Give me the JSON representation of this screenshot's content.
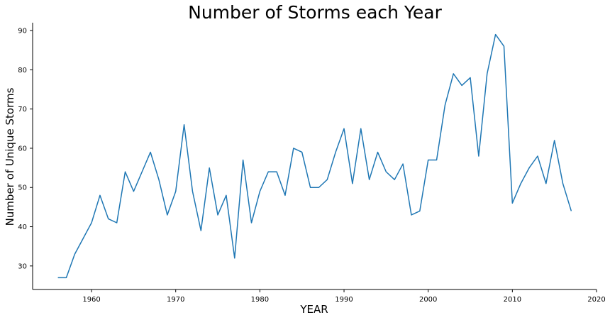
{
  "chart_data": {
    "type": "line",
    "title": "Number of Storms each Year",
    "xlabel": "YEAR",
    "ylabel": "Number of Unique Storms",
    "xlim": [
      1953,
      2020
    ],
    "ylim": [
      24,
      92
    ],
    "xticks": [
      1960,
      1970,
      1980,
      1990,
      2000,
      2010,
      2020
    ],
    "yticks": [
      30,
      40,
      50,
      60,
      70,
      80,
      90
    ],
    "grid": false,
    "legend": "none",
    "color": "#1f77b4",
    "x": [
      1956,
      1957,
      1958,
      1959,
      1960,
      1961,
      1962,
      1963,
      1964,
      1965,
      1966,
      1967,
      1968,
      1969,
      1970,
      1971,
      1972,
      1973,
      1974,
      1975,
      1976,
      1977,
      1978,
      1979,
      1980,
      1981,
      1982,
      1983,
      1984,
      1985,
      1986,
      1987,
      1988,
      1989,
      1990,
      1991,
      1992,
      1993,
      1994,
      1995,
      1996,
      1997,
      1998,
      1999,
      2000,
      2001,
      2002,
      2003,
      2004,
      2005,
      2006,
      2007,
      2008,
      2009,
      2010,
      2011,
      2012,
      2013,
      2014,
      2015,
      2016,
      2017
    ],
    "y": [
      27,
      27,
      33,
      37,
      41,
      48,
      42,
      41,
      54,
      49,
      54,
      59,
      52,
      43,
      49,
      66,
      49,
      39,
      55,
      43,
      48,
      32,
      57,
      41,
      49,
      54,
      54,
      48,
      60,
      59,
      50,
      50,
      52,
      59,
      65,
      51,
      65,
      52,
      59,
      54,
      52,
      56,
      43,
      44,
      57,
      57,
      71,
      79,
      76,
      78,
      58,
      79,
      89,
      86,
      46,
      51,
      55,
      58,
      51,
      62,
      51,
      44
    ]
  }
}
